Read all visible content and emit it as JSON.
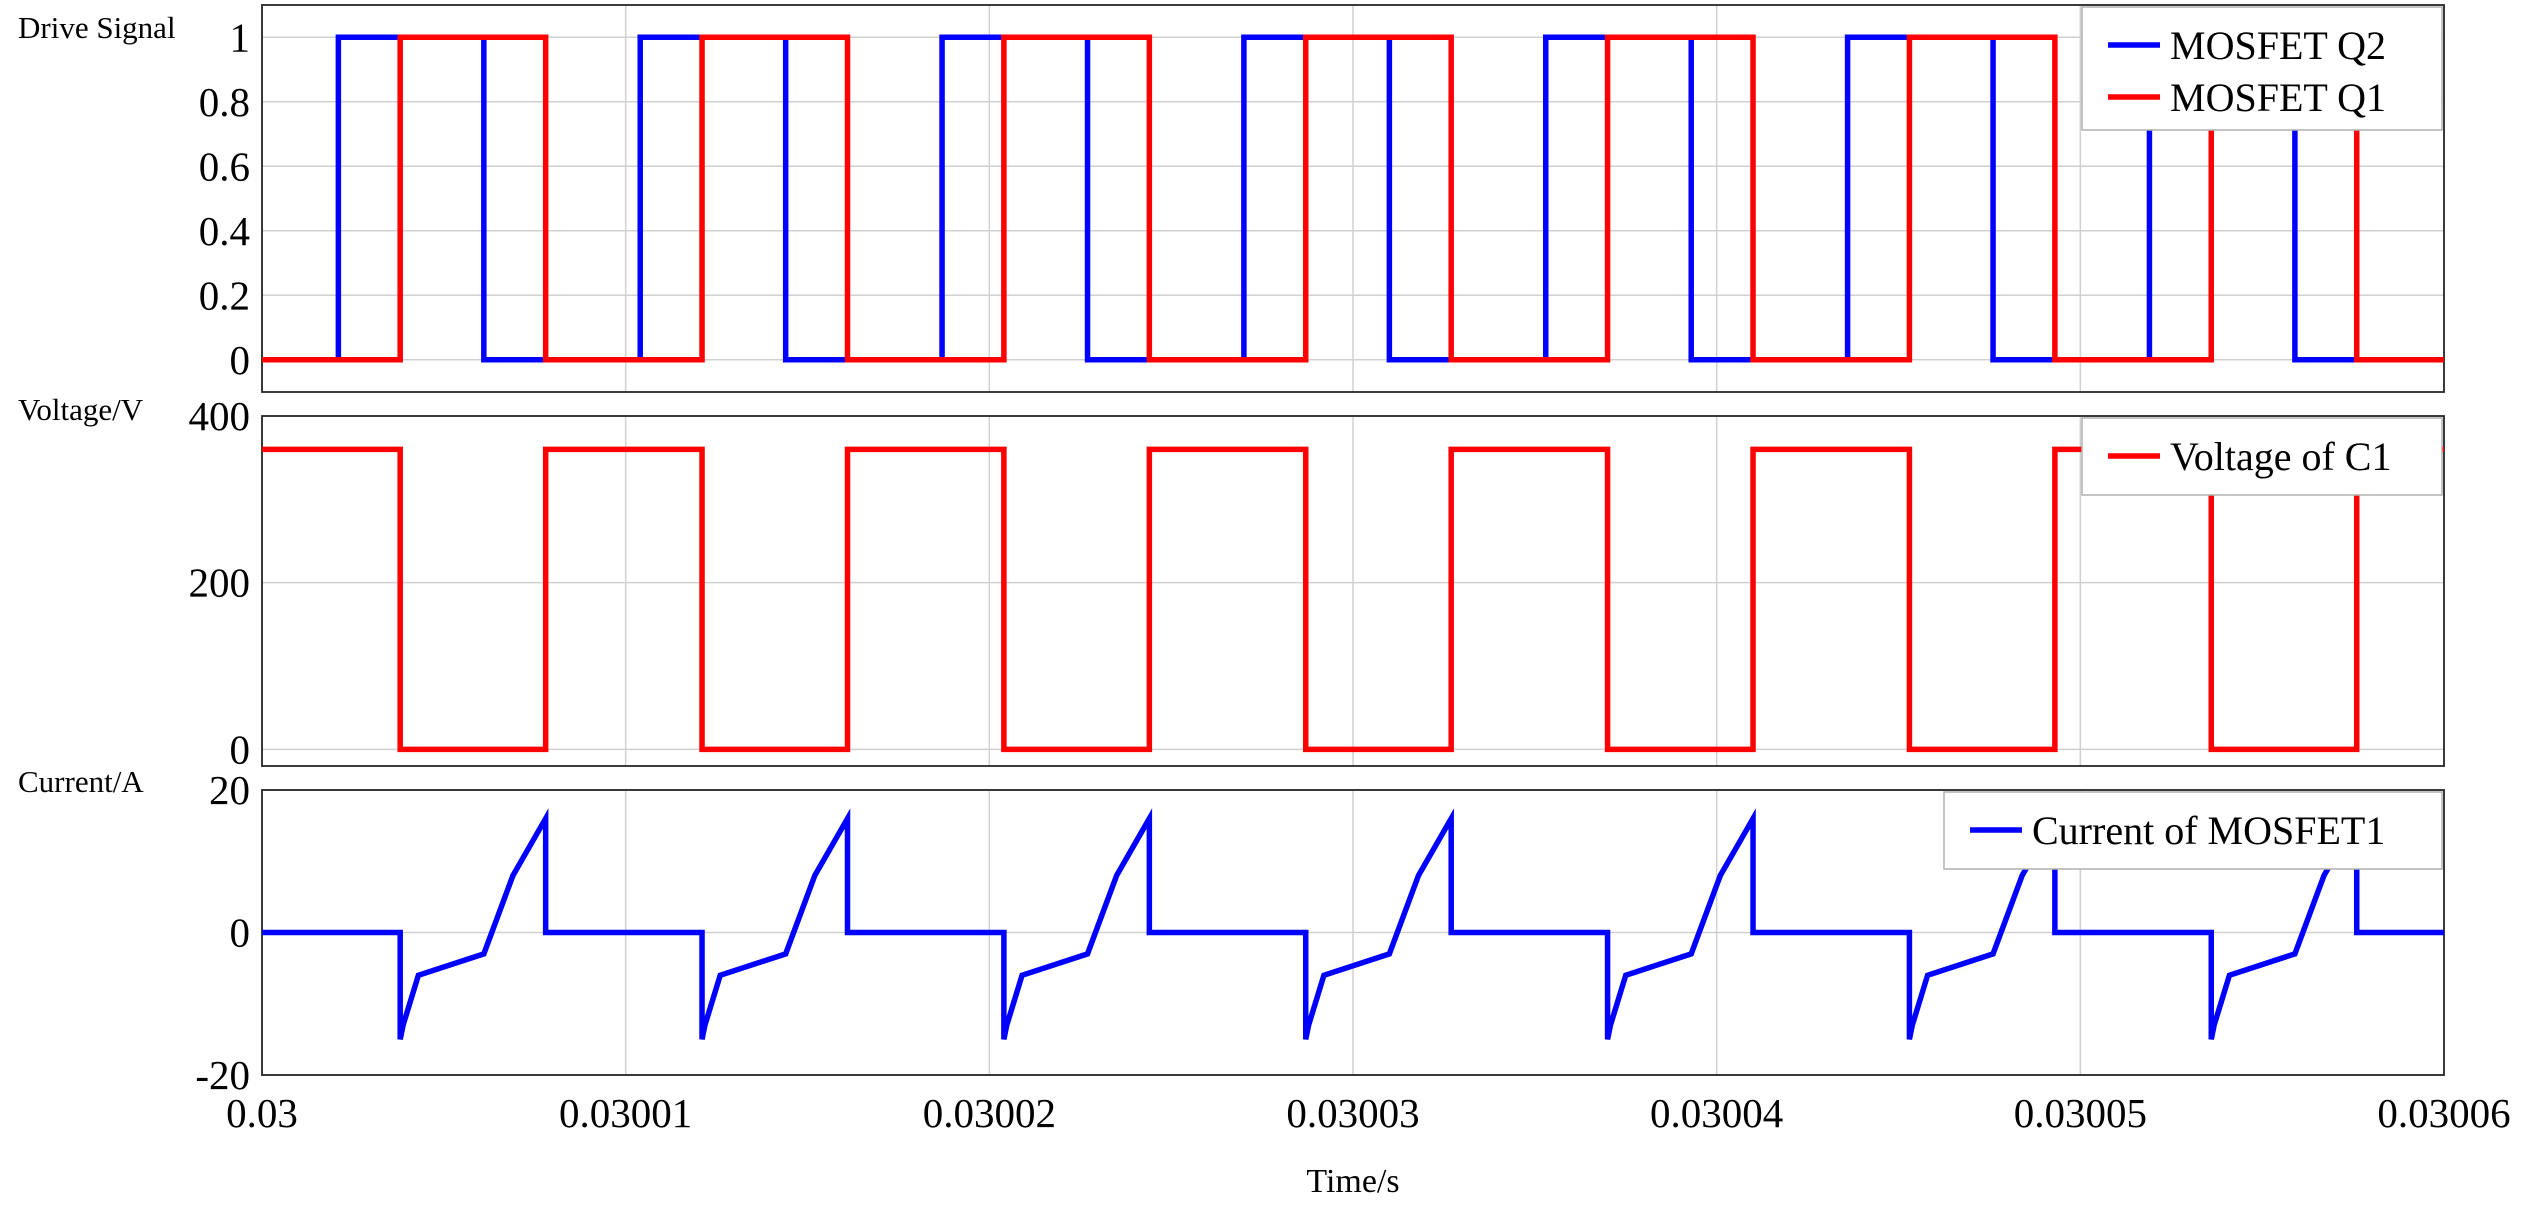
{
  "chart_data": [
    {
      "type": "line",
      "ylabel": "Drive Signal",
      "xlim": [
        0.03,
        0.03006
      ],
      "ylim": [
        -0.1,
        1.1
      ],
      "yticks": [
        0,
        0.2,
        0.4,
        0.6,
        0.8,
        1
      ],
      "ytick_labels": [
        "0",
        "0.2",
        "0.4",
        "0.6",
        "0.8",
        "1"
      ],
      "grid": true,
      "legend_position": "top-right",
      "series": [
        {
          "name": "MOSFET Q2",
          "color": "#0000ff",
          "step": true,
          "x": [
            0.03,
            0.0300021,
            0.0300061,
            0.0300104,
            0.0300144,
            0.0300187,
            0.0300227,
            0.030027,
            0.030031,
            0.0300353,
            0.0300393,
            0.0300436,
            0.0300476,
            0.0300519,
            0.0300559,
            0.03006
          ],
          "values": [
            0,
            1,
            0,
            1,
            0,
            1,
            0,
            1,
            0,
            1,
            0,
            1,
            0,
            1,
            0,
            0
          ]
        },
        {
          "name": "MOSFET Q1",
          "color": "#ff0000",
          "step": true,
          "x": [
            0.03,
            0.0300038,
            0.0300078,
            0.0300121,
            0.0300161,
            0.0300204,
            0.0300244,
            0.0300287,
            0.0300327,
            0.030037,
            0.030041,
            0.0300453,
            0.0300493,
            0.0300536,
            0.0300576,
            0.03006
          ],
          "values": [
            0,
            1,
            0,
            1,
            0,
            1,
            0,
            1,
            0,
            1,
            0,
            1,
            0,
            1,
            0,
            0
          ]
        }
      ]
    },
    {
      "type": "line",
      "ylabel": "Voltage/V",
      "xlim": [
        0.03,
        0.03006
      ],
      "ylim": [
        -20,
        400
      ],
      "yticks": [
        0,
        200,
        400
      ],
      "ytick_labels": [
        "0",
        "200",
        "400"
      ],
      "grid": true,
      "legend_position": "top-right",
      "series": [
        {
          "name": "Voltage of C1",
          "color": "#ff0000",
          "step": true,
          "x": [
            0.03,
            0.0300038,
            0.0300078,
            0.0300121,
            0.0300161,
            0.0300204,
            0.0300244,
            0.0300287,
            0.0300327,
            0.030037,
            0.030041,
            0.0300453,
            0.0300493,
            0.0300536,
            0.0300576,
            0.03006
          ],
          "values": [
            360,
            0,
            360,
            0,
            360,
            0,
            360,
            0,
            360,
            0,
            360,
            0,
            360,
            0,
            360,
            360
          ]
        }
      ]
    },
    {
      "type": "line",
      "ylabel": "Current/A",
      "xlabel": "Time/s",
      "xlim": [
        0.03,
        0.03006
      ],
      "ylim": [
        -20,
        20
      ],
      "yticks": [
        -20,
        0,
        20
      ],
      "ytick_labels": [
        "-20",
        "0",
        "20"
      ],
      "xticks": [
        0.03,
        0.03001,
        0.03002,
        0.03003,
        0.03004,
        0.03005,
        0.03006
      ],
      "xtick_labels": [
        "0.03",
        "0.03001",
        "0.03002",
        "0.03003",
        "0.03004",
        "0.03005",
        "0.03006"
      ],
      "grid": true,
      "legend_position": "top-right",
      "series": [
        {
          "name": "Current of MOSFET1",
          "color": "#0000ff",
          "period": 8.3e-06,
          "first_turn_on": 0.0300038,
          "cycles": 7,
          "pulse_shape": {
            "t_offset": [
              0,
              0,
              8e-08,
              5e-07,
              2.3e-06,
              3.1e-06,
              4e-06,
              4e-06
            ],
            "values": [
              0,
              -15,
              -13,
              -6,
              -3,
              8,
              16,
              0
            ]
          }
        }
      ]
    }
  ]
}
